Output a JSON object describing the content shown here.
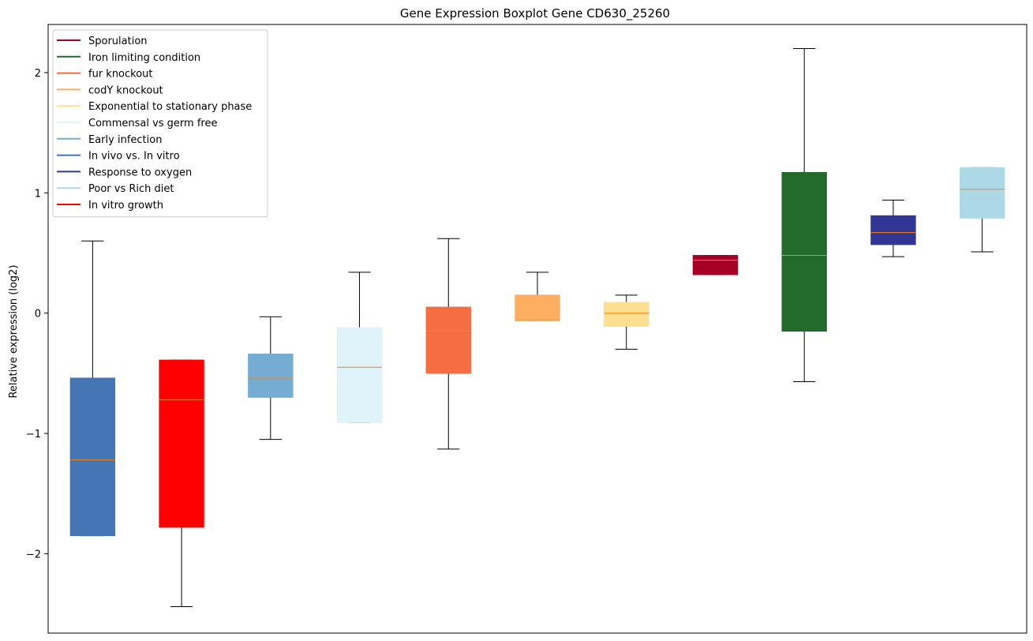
{
  "chart_data": {
    "type": "boxplot",
    "title": "Gene Expression Boxplot Gene CD630_25260",
    "xlabel": "",
    "ylabel": "Relative expression (log2)",
    "ylim": [
      -2.66,
      2.4
    ],
    "yticks": [
      -2,
      -1,
      0,
      1,
      2
    ],
    "ytick_labels": [
      "−2",
      "−1",
      "0",
      "1",
      "2"
    ],
    "legend_position": "top-left",
    "median_color": "#ff7f0e",
    "legend": [
      {
        "label": "Sporulation",
        "color": "#a50026"
      },
      {
        "label": "Iron limiting condition",
        "color": "#226b2c"
      },
      {
        "label": "fur knockout",
        "color": "#f46d43"
      },
      {
        "label": "codY knockout",
        "color": "#fdae61"
      },
      {
        "label": "Exponential to stationary phase",
        "color": "#fee090"
      },
      {
        "label": "Commensal vs germ free",
        "color": "#e0f3f8"
      },
      {
        "label": "Early infection",
        "color": "#74add1"
      },
      {
        "label": "In vivo vs. In vitro",
        "color": "#4575b4"
      },
      {
        "label": "Response to oxygen",
        "color": "#313695"
      },
      {
        "label": "Poor vs Rich diet",
        "color": "#add8e6"
      },
      {
        "label": "In vitro growth",
        "color": "#ff0000"
      }
    ],
    "boxes": [
      {
        "condition": "In vivo vs. In vitro",
        "color": "#4575b4",
        "whislo": -1.85,
        "q1": -1.85,
        "med": -1.22,
        "q3": -0.54,
        "whishi": 0.6
      },
      {
        "condition": "In vitro growth",
        "color": "#ff0000",
        "whislo": -2.44,
        "q1": -1.78,
        "med": -0.72,
        "q3": -0.39,
        "whishi": -0.39
      },
      {
        "condition": "Early infection",
        "color": "#74add1",
        "whislo": -1.05,
        "q1": -0.7,
        "med": -0.54,
        "q3": -0.34,
        "whishi": -0.03
      },
      {
        "condition": "Commensal vs germ free",
        "color": "#e0f3f8",
        "whislo": -0.91,
        "q1": -0.91,
        "med": -0.45,
        "q3": -0.12,
        "whishi": 0.34
      },
      {
        "condition": "fur knockout",
        "color": "#f46d43",
        "whislo": -1.13,
        "q1": -0.5,
        "med": -0.15,
        "q3": 0.05,
        "whishi": 0.62
      },
      {
        "condition": "codY knockout",
        "color": "#fdae61",
        "whislo": -0.06,
        "q1": -0.06,
        "med": -0.06,
        "q3": 0.15,
        "whishi": 0.34
      },
      {
        "condition": "Exponential to stationary phase",
        "color": "#fee090",
        "whislo": -0.3,
        "q1": -0.11,
        "med": 0.0,
        "q3": 0.09,
        "whishi": 0.15
      },
      {
        "condition": "Sporulation",
        "color": "#a50026",
        "whislo": 0.32,
        "q1": 0.32,
        "med": 0.44,
        "q3": 0.48,
        "whishi": 0.48
      },
      {
        "condition": "Iron limiting condition",
        "color": "#226b2c",
        "whislo": -0.57,
        "q1": -0.15,
        "med": 0.48,
        "q3": 1.17,
        "whishi": 2.2
      },
      {
        "condition": "Response to oxygen",
        "color": "#313695",
        "whislo": 0.47,
        "q1": 0.57,
        "med": 0.67,
        "q3": 0.81,
        "whishi": 0.94
      },
      {
        "condition": "Poor vs Rich diet",
        "color": "#add8e6",
        "whislo": 0.51,
        "q1": 0.79,
        "med": 1.03,
        "q3": 1.21,
        "whishi": 1.21
      }
    ]
  }
}
